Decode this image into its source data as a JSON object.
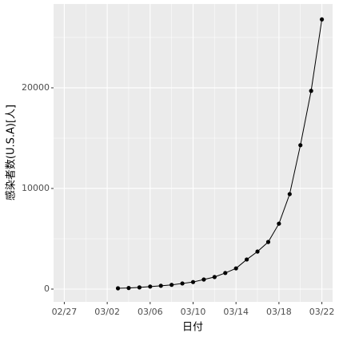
{
  "chart_data": {
    "type": "line",
    "x_label": "日付",
    "y_label": "感染者数(U.S.A)[人]",
    "x": [
      "03/03",
      "03/04",
      "03/05",
      "03/06",
      "03/07",
      "03/08",
      "03/09",
      "03/10",
      "03/11",
      "03/12",
      "03/13",
      "03/14",
      "03/15",
      "03/16",
      "03/17",
      "03/18",
      "03/19",
      "03/20",
      "03/21",
      "03/22"
    ],
    "series": [
      {
        "color": "#000000",
        "values": [
          80,
          110,
          170,
          250,
          330,
          420,
          560,
          700,
          950,
          1200,
          1600,
          2060,
          2940,
          3730,
          4680,
          6500,
          9440,
          14300,
          19700,
          26800
        ]
      }
    ],
    "xlim": [
      "02/26",
      "03/23"
    ],
    "xticks": [
      "02/27",
      "03/02",
      "03/06",
      "03/10",
      "03/14",
      "03/18",
      "03/22"
    ],
    "ylim": [
      -1270,
      28330
    ],
    "yticks": [
      0,
      10000,
      20000
    ],
    "grid": true
  }
}
